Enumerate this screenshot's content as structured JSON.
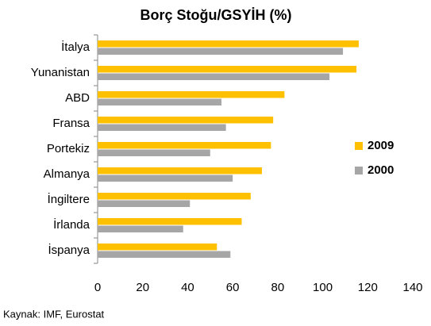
{
  "chart_data": {
    "type": "barh",
    "title": "Borç Stoğu/GSYİH (%)",
    "categories": [
      "İtalya",
      "Yunanistan",
      "ABD",
      "Fransa",
      "Portekiz",
      "Almanya",
      "İngiltere",
      "İrlanda",
      "İspanya"
    ],
    "series": [
      {
        "name": "2009",
        "color": "#FFC000",
        "values": [
          116,
          115,
          83,
          78,
          77,
          73,
          68,
          64,
          53
        ]
      },
      {
        "name": "2000",
        "color": "#A6A6A6",
        "values": [
          109,
          103,
          55,
          57,
          50,
          60,
          41,
          38,
          59
        ]
      }
    ],
    "xlim": [
      0,
      140
    ],
    "xticks": [
      0,
      20,
      40,
      60,
      80,
      100,
      120,
      140
    ],
    "legend": "right",
    "source": "Kaynak: IMF, Eurostat"
  }
}
